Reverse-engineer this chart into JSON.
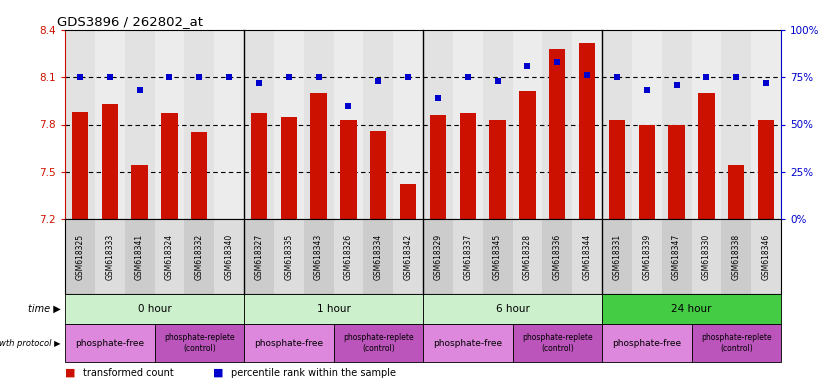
{
  "title": "GDS3896 / 262802_at",
  "samples": [
    "GSM618325",
    "GSM618333",
    "GSM618341",
    "GSM618324",
    "GSM618332",
    "GSM618340",
    "GSM618327",
    "GSM618335",
    "GSM618343",
    "GSM618326",
    "GSM618334",
    "GSM618342",
    "GSM618329",
    "GSM618337",
    "GSM618345",
    "GSM618328",
    "GSM618336",
    "GSM618344",
    "GSM618331",
    "GSM618339",
    "GSM618347",
    "GSM618330",
    "GSM618338",
    "GSM618346"
  ],
  "transformed_count": [
    7.88,
    7.93,
    7.54,
    7.87,
    7.75,
    7.2,
    7.87,
    7.85,
    8.0,
    7.83,
    7.76,
    7.42,
    7.86,
    7.87,
    7.83,
    8.01,
    8.28,
    8.32,
    7.83,
    7.8,
    7.8,
    8.0,
    7.54,
    7.83
  ],
  "percentile_rank": [
    75,
    75,
    68,
    75,
    75,
    75,
    72,
    75,
    75,
    60,
    73,
    75,
    64,
    75,
    73,
    81,
    83,
    76,
    75,
    68,
    71,
    75,
    75,
    72
  ],
  "ymin": 7.2,
  "ymax": 8.4,
  "yticks_left": [
    7.2,
    7.5,
    7.8,
    8.1,
    8.4
  ],
  "yticks_right": [
    0,
    25,
    50,
    75,
    100
  ],
  "bar_color": "#cc1100",
  "dot_color": "#0000cc",
  "left_tick_color": "#cc1100",
  "right_tick_color": "#0000cc",
  "time_groups": [
    {
      "label": "0 hour",
      "start": 0,
      "end": 6,
      "color": "#ccf5cc"
    },
    {
      "label": "1 hour",
      "start": 6,
      "end": 12,
      "color": "#ccf5cc"
    },
    {
      "label": "6 hour",
      "start": 12,
      "end": 18,
      "color": "#ccf5cc"
    },
    {
      "label": "24 hour",
      "start": 18,
      "end": 24,
      "color": "#44cc44"
    }
  ],
  "growth_groups": [
    {
      "label": "phosphate-free",
      "start": 0,
      "end": 3,
      "color": "#dd88dd"
    },
    {
      "label": "phosphate-replete\n(control)",
      "start": 3,
      "end": 6,
      "color": "#bb55bb"
    },
    {
      "label": "phosphate-free",
      "start": 6,
      "end": 9,
      "color": "#dd88dd"
    },
    {
      "label": "phosphate-replete\n(control)",
      "start": 9,
      "end": 12,
      "color": "#bb55bb"
    },
    {
      "label": "phosphate-free",
      "start": 12,
      "end": 15,
      "color": "#dd88dd"
    },
    {
      "label": "phosphate-replete\n(control)",
      "start": 15,
      "end": 18,
      "color": "#bb55bb"
    },
    {
      "label": "phosphate-free",
      "start": 18,
      "end": 21,
      "color": "#dd88dd"
    },
    {
      "label": "phosphate-replete\n(control)",
      "start": 21,
      "end": 24,
      "color": "#bb55bb"
    }
  ]
}
